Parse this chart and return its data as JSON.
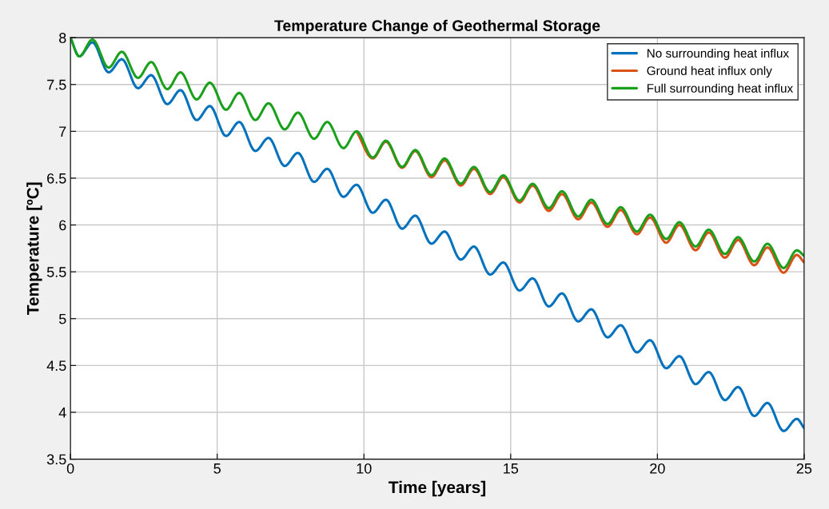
{
  "chart_data": {
    "type": "line",
    "title": "Temperature Change of Geothermal Storage",
    "xlabel": "Time [years]",
    "ylabel": "Temperature [ºC]",
    "x": [
      0,
      0.3,
      0.75,
      1.3,
      1.75,
      2.3,
      2.75,
      3.3,
      3.75,
      4.3,
      4.75,
      5.3,
      5.75,
      6.3,
      6.75,
      7.3,
      7.75,
      8.3,
      8.75,
      9.3,
      9.75,
      10.3,
      10.75,
      11.3,
      11.75,
      12.3,
      12.75,
      13.3,
      13.75,
      14.3,
      14.75,
      15.3,
      15.75,
      16.3,
      16.75,
      17.3,
      17.75,
      18.3,
      18.75,
      19.3,
      19.75,
      20.3,
      20.75,
      21.3,
      21.75,
      22.3,
      22.75,
      23.3,
      23.75,
      24.3,
      24.75,
      25
    ],
    "series": [
      {
        "name": "No surrounding heat influx",
        "color": "#0072bd",
        "values": [
          8,
          7.8,
          7.95,
          7.63,
          7.77,
          7.46,
          7.6,
          7.29,
          7.44,
          7.12,
          7.27,
          6.95,
          7.1,
          6.79,
          6.93,
          6.63,
          6.77,
          6.46,
          6.6,
          6.3,
          6.43,
          6.13,
          6.27,
          5.96,
          6.1,
          5.8,
          5.93,
          5.63,
          5.77,
          5.47,
          5.6,
          5.3,
          5.43,
          5.13,
          5.27,
          4.97,
          5.1,
          4.8,
          4.93,
          4.64,
          4.77,
          4.47,
          4.6,
          4.3,
          4.43,
          4.13,
          4.27,
          3.96,
          4.1,
          3.8,
          3.93,
          3.83
        ]
      },
      {
        "name": "Ground heat influx only",
        "color": "#d95319",
        "values": [
          null,
          null,
          null,
          null,
          null,
          null,
          null,
          null,
          null,
          null,
          null,
          null,
          null,
          null,
          null,
          null,
          null,
          null,
          null,
          null,
          7.0,
          6.71,
          6.89,
          6.61,
          6.79,
          6.51,
          6.69,
          6.42,
          6.6,
          6.33,
          6.51,
          6.24,
          6.42,
          6.15,
          6.33,
          6.06,
          6.24,
          5.98,
          6.16,
          5.9,
          6.08,
          5.81,
          6.0,
          5.73,
          5.92,
          5.65,
          5.84,
          5.57,
          5.76,
          5.49,
          5.68,
          5.6
        ]
      },
      {
        "name": "Full surrounding heat influx",
        "color": "#1ba01b",
        "values": [
          8,
          7.8,
          7.98,
          7.68,
          7.85,
          7.57,
          7.74,
          7.45,
          7.63,
          7.34,
          7.52,
          7.23,
          7.41,
          7.12,
          7.3,
          7.02,
          7.2,
          6.92,
          7.1,
          6.82,
          7.0,
          6.72,
          6.9,
          6.62,
          6.8,
          6.53,
          6.71,
          6.44,
          6.62,
          6.35,
          6.53,
          6.26,
          6.44,
          6.18,
          6.36,
          6.09,
          6.27,
          6.01,
          6.19,
          5.93,
          6.11,
          5.85,
          6.03,
          5.77,
          5.95,
          5.69,
          5.87,
          5.61,
          5.8,
          5.54,
          5.73,
          5.67
        ]
      }
    ],
    "xlim": [
      0,
      25
    ],
    "xticks": [
      0,
      5,
      10,
      15,
      20,
      25
    ],
    "ylim": [
      3.5,
      8
    ],
    "yticks": [
      3.5,
      4,
      4.5,
      5,
      5.5,
      6,
      6.5,
      7,
      7.5,
      8
    ],
    "grid": true,
    "legend": "top right",
    "marker": "none",
    "line_style": "solid"
  }
}
